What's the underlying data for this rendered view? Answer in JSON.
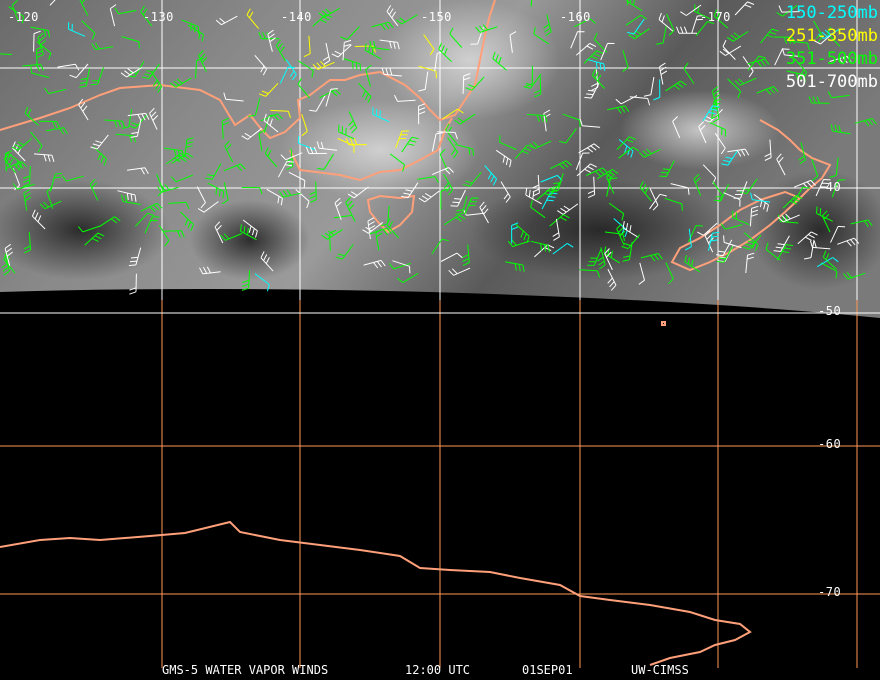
{
  "map": {
    "longitude_labels": [
      "-120",
      "-130",
      "-140",
      "-150",
      "-160",
      "-170"
    ],
    "latitude_labels": [
      "-40",
      "-50",
      "-60",
      "-70"
    ],
    "legend": [
      {
        "label": "150-250mb",
        "color": "#00ffff"
      },
      {
        "label": "251-350mb",
        "color": "#ffff00"
      },
      {
        "label": "351-500mb",
        "color": "#00ff00"
      },
      {
        "label": "501-700mb",
        "color": "#ffffff"
      }
    ],
    "coastline_color": "#ffa07a",
    "grid_color_imagery": "#ffffff",
    "grid_color_background": "#ff9955"
  },
  "footer": {
    "product": "GMS-5 WATER VAPOR WINDS",
    "time": "12:00 UTC",
    "date": "01SEP01",
    "source": "UW-CIMSS"
  }
}
